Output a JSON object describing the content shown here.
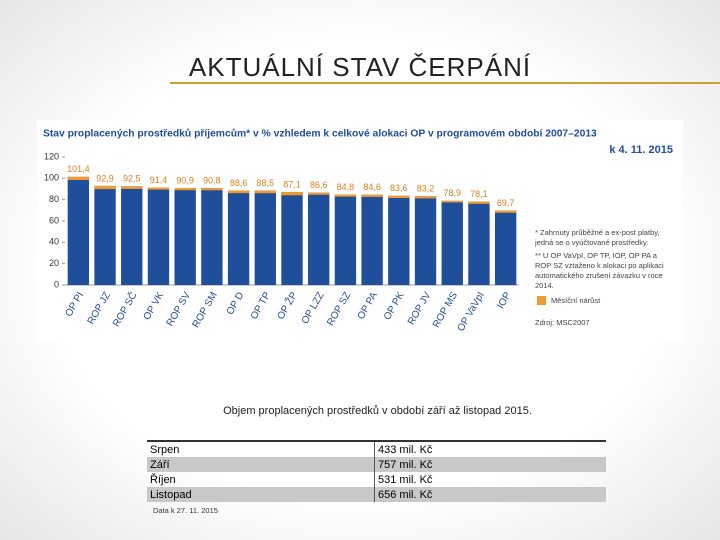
{
  "slide_title": "AKTUÁLNÍ STAV ČERPÁNÍ",
  "chart_data": {
    "type": "bar",
    "title": "Stav proplacených prostředků příjemcům* v % vzhledem k celkové alokaci OP v programovém období 2007–2013",
    "subtitle": "k 4. 11. 2015",
    "categories": [
      "OP PI",
      "ROP JZ",
      "ROP SČ",
      "OP VK",
      "ROP SV",
      "ROP SM",
      "OP D",
      "OP TP",
      "OP ŽP",
      "OP LZZ",
      "ROP SZ",
      "OP PA",
      "OP PK",
      "ROP JV",
      "ROP MS",
      "OP VaVpI",
      "IOP"
    ],
    "values": [
      101.4,
      92.9,
      92.5,
      91.4,
      90.9,
      90.8,
      88.6,
      88.5,
      87.1,
      86.6,
      84.8,
      84.6,
      83.6,
      83.2,
      78.9,
      78.1,
      69.7
    ],
    "value_labels": [
      "101,4",
      "92,9",
      "92,5",
      "91,4",
      "90,9",
      "90,8",
      "88,6",
      "88,5",
      "87,1",
      "86,6",
      "84,8",
      "84,6",
      "83,6",
      "83,2",
      "78,9",
      "78,1",
      "69,7"
    ],
    "color": "#1f4e9a",
    "series": [
      {
        "name": "Měsíční nárůst",
        "color": "#f29a2e",
        "values": [
          3,
          3,
          2.5,
          2,
          2,
          2,
          2.5,
          2.5,
          3,
          2,
          2,
          2,
          2,
          2,
          1.5,
          2,
          2
        ]
      }
    ],
    "ylim": [
      0,
      120
    ],
    "yticks": [
      0,
      20,
      40,
      60,
      80,
      100,
      120
    ],
    "notes": [
      "* Zahrnuty průběžné a ex-post platby, jedná se o vyúčtované prostředky.",
      "** U OP VaVpI, OP TP, IOP, OP PA a ROP SZ vztaženo k alokaci po aplikaci automatického zrušení závazku v roce 2014."
    ],
    "source": "Zdroj: MSC2007"
  },
  "caption": "Objem proplacených prostředků v období září až listopad 2015.",
  "table": {
    "rows": [
      [
        "Srpen",
        "433 mil. Kč"
      ],
      [
        "Září",
        "757 mil. Kč"
      ],
      [
        "Říjen",
        "531 mil. Kč"
      ],
      [
        "Listopad",
        "656 mil. Kč"
      ]
    ]
  },
  "footnote": "Data k 27. 11. 2015"
}
